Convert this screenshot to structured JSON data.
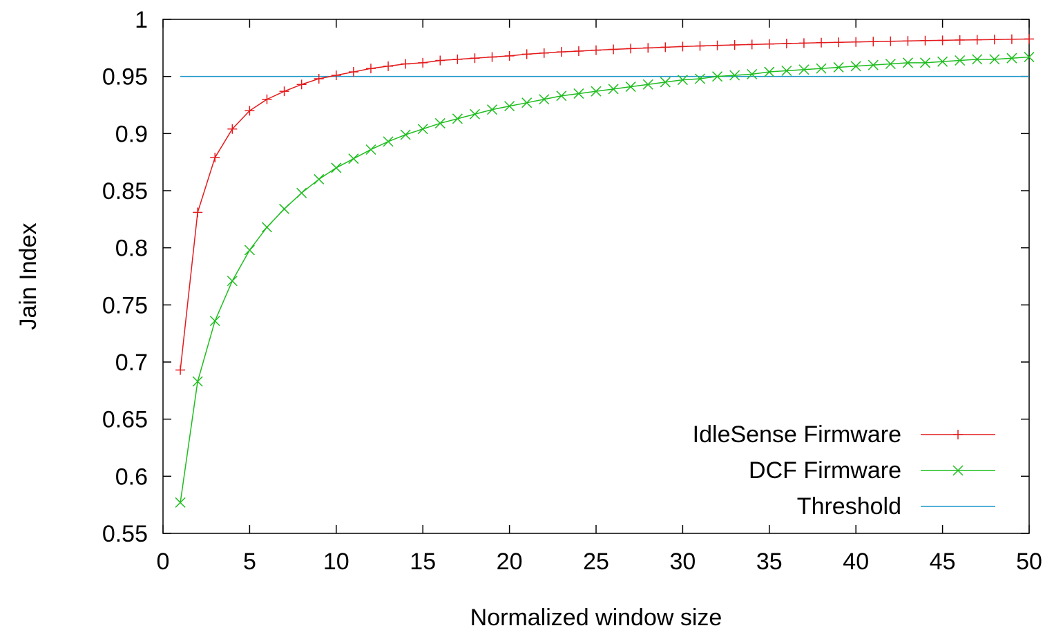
{
  "chart_data": {
    "type": "line",
    "title": "",
    "xlabel": "Normalized window size",
    "ylabel": "Jain Index",
    "xlim": [
      0,
      50
    ],
    "ylim": [
      0.55,
      1
    ],
    "x_ticks": [
      0,
      5,
      10,
      15,
      20,
      25,
      30,
      35,
      40,
      45,
      50
    ],
    "y_ticks": [
      0.55,
      0.6,
      0.65,
      0.7,
      0.75,
      0.8,
      0.85,
      0.9,
      0.95,
      1
    ],
    "x_tick_labels": [
      "0",
      "5",
      "10",
      "15",
      "20",
      "25",
      "30",
      "35",
      "40",
      "45",
      "50"
    ],
    "y_tick_labels": [
      "0.55",
      "0.6",
      "0.65",
      "0.7",
      "0.75",
      "0.8",
      "0.85",
      "0.9",
      "0.95",
      "1"
    ],
    "grid": false,
    "legend_position": "bottom-right",
    "x": [
      1,
      2,
      3,
      4,
      5,
      6,
      7,
      8,
      9,
      10,
      11,
      12,
      13,
      14,
      15,
      16,
      17,
      18,
      19,
      20,
      21,
      22,
      23,
      24,
      25,
      26,
      27,
      28,
      29,
      30,
      31,
      32,
      33,
      34,
      35,
      36,
      37,
      38,
      39,
      40,
      41,
      42,
      43,
      44,
      45,
      46,
      47,
      48,
      49,
      50
    ],
    "series": [
      {
        "name": "IdleSense Firmware",
        "color": "#e41a1c",
        "marker": "plus",
        "values": [
          0.693,
          0.831,
          0.879,
          0.904,
          0.92,
          0.93,
          0.937,
          0.943,
          0.948,
          0.951,
          0.954,
          0.957,
          0.959,
          0.961,
          0.962,
          0.964,
          0.965,
          0.966,
          0.967,
          0.968,
          0.9695,
          0.9705,
          0.9715,
          0.9722,
          0.973,
          0.9737,
          0.9744,
          0.975,
          0.9756,
          0.9762,
          0.9767,
          0.9772,
          0.9776,
          0.978,
          0.9784,
          0.9788,
          0.9792,
          0.9796,
          0.9799,
          0.9802,
          0.9805,
          0.9808,
          0.9811,
          0.9814,
          0.9816,
          0.9819,
          0.9821,
          0.9823,
          0.9826,
          0.9828
        ]
      },
      {
        "name": "DCF Firmware",
        "color": "#1ebd1e",
        "marker": "cross",
        "values": [
          0.577,
          0.683,
          0.736,
          0.771,
          0.798,
          0.818,
          0.834,
          0.848,
          0.86,
          0.87,
          0.878,
          0.886,
          0.893,
          0.899,
          0.904,
          0.909,
          0.913,
          0.917,
          0.921,
          0.924,
          0.927,
          0.93,
          0.933,
          0.935,
          0.937,
          0.939,
          0.941,
          0.943,
          0.945,
          0.947,
          0.948,
          0.95,
          0.951,
          0.952,
          0.954,
          0.955,
          0.956,
          0.957,
          0.958,
          0.959,
          0.96,
          0.961,
          0.962,
          0.962,
          0.963,
          0.964,
          0.965,
          0.965,
          0.966,
          0.967
        ]
      }
    ],
    "threshold": {
      "name": "Threshold",
      "color": "#1a96c8",
      "value": 0.95
    }
  }
}
